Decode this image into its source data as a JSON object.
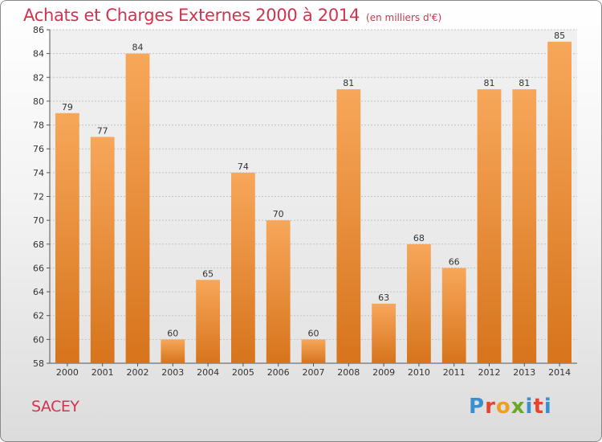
{
  "header": {
    "title": "Achats et Charges Externes 2000 à 2014",
    "subtitle": "(en milliers d'€)"
  },
  "footer": {
    "city": "SACEY",
    "brand": {
      "letters": [
        "P",
        "r",
        "o",
        "x",
        "i",
        "t",
        "i"
      ],
      "colors": [
        "#3a8fd0",
        "#e8432f",
        "#f0a020",
        "#6aa82a",
        "#3a8fd0",
        "#e8432f",
        "#3a8fd0"
      ]
    }
  },
  "colors": {
    "bar_top": "#f7a75a",
    "bar_bottom": "#d7741c",
    "title": "#d2334f",
    "axis": "#555555"
  },
  "chart_data": {
    "type": "bar",
    "title": "Achats et Charges Externes 2000 à 2014",
    "xlabel": "",
    "ylabel": "",
    "categories": [
      "2000",
      "2001",
      "2002",
      "2003",
      "2004",
      "2005",
      "2006",
      "2007",
      "2008",
      "2009",
      "2010",
      "2011",
      "2012",
      "2013",
      "2014"
    ],
    "values": [
      79,
      77,
      84,
      60,
      65,
      74,
      70,
      60,
      81,
      63,
      68,
      66,
      81,
      81,
      85
    ],
    "ylim": [
      58,
      86
    ],
    "yticks": [
      58,
      60,
      62,
      64,
      66,
      68,
      70,
      72,
      74,
      76,
      78,
      80,
      82,
      84,
      86
    ],
    "grid": true,
    "data_labels": true
  }
}
